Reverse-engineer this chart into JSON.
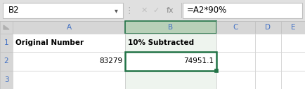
{
  "cell_ref": "B2",
  "formula": "=A2*90%",
  "col_headers": [
    "A",
    "B",
    "C",
    "D",
    "E"
  ],
  "row1_labels": [
    "Original Number",
    "10% Subtracted",
    "",
    "",
    ""
  ],
  "row2_values": [
    "83279",
    "74951.1",
    "",
    "",
    ""
  ],
  "row3_values": [
    "",
    "",
    "",
    "",
    ""
  ],
  "bg_color": "#e0e0e0",
  "sheet_bg": "#ffffff",
  "header_bg": "#d6d6d6",
  "selected_col_header_bg": "#b8d0b8",
  "selected_cell_border": "#217346",
  "name_box_text": "B2",
  "formula_text": "=A2*90%",
  "row_num_color": "#4472c4",
  "col_header_text_color": "#4472c4",
  "selected_col_text_color": "#4472c4",
  "cell_text_color": "#000000",
  "bold_header_color": "#000000"
}
